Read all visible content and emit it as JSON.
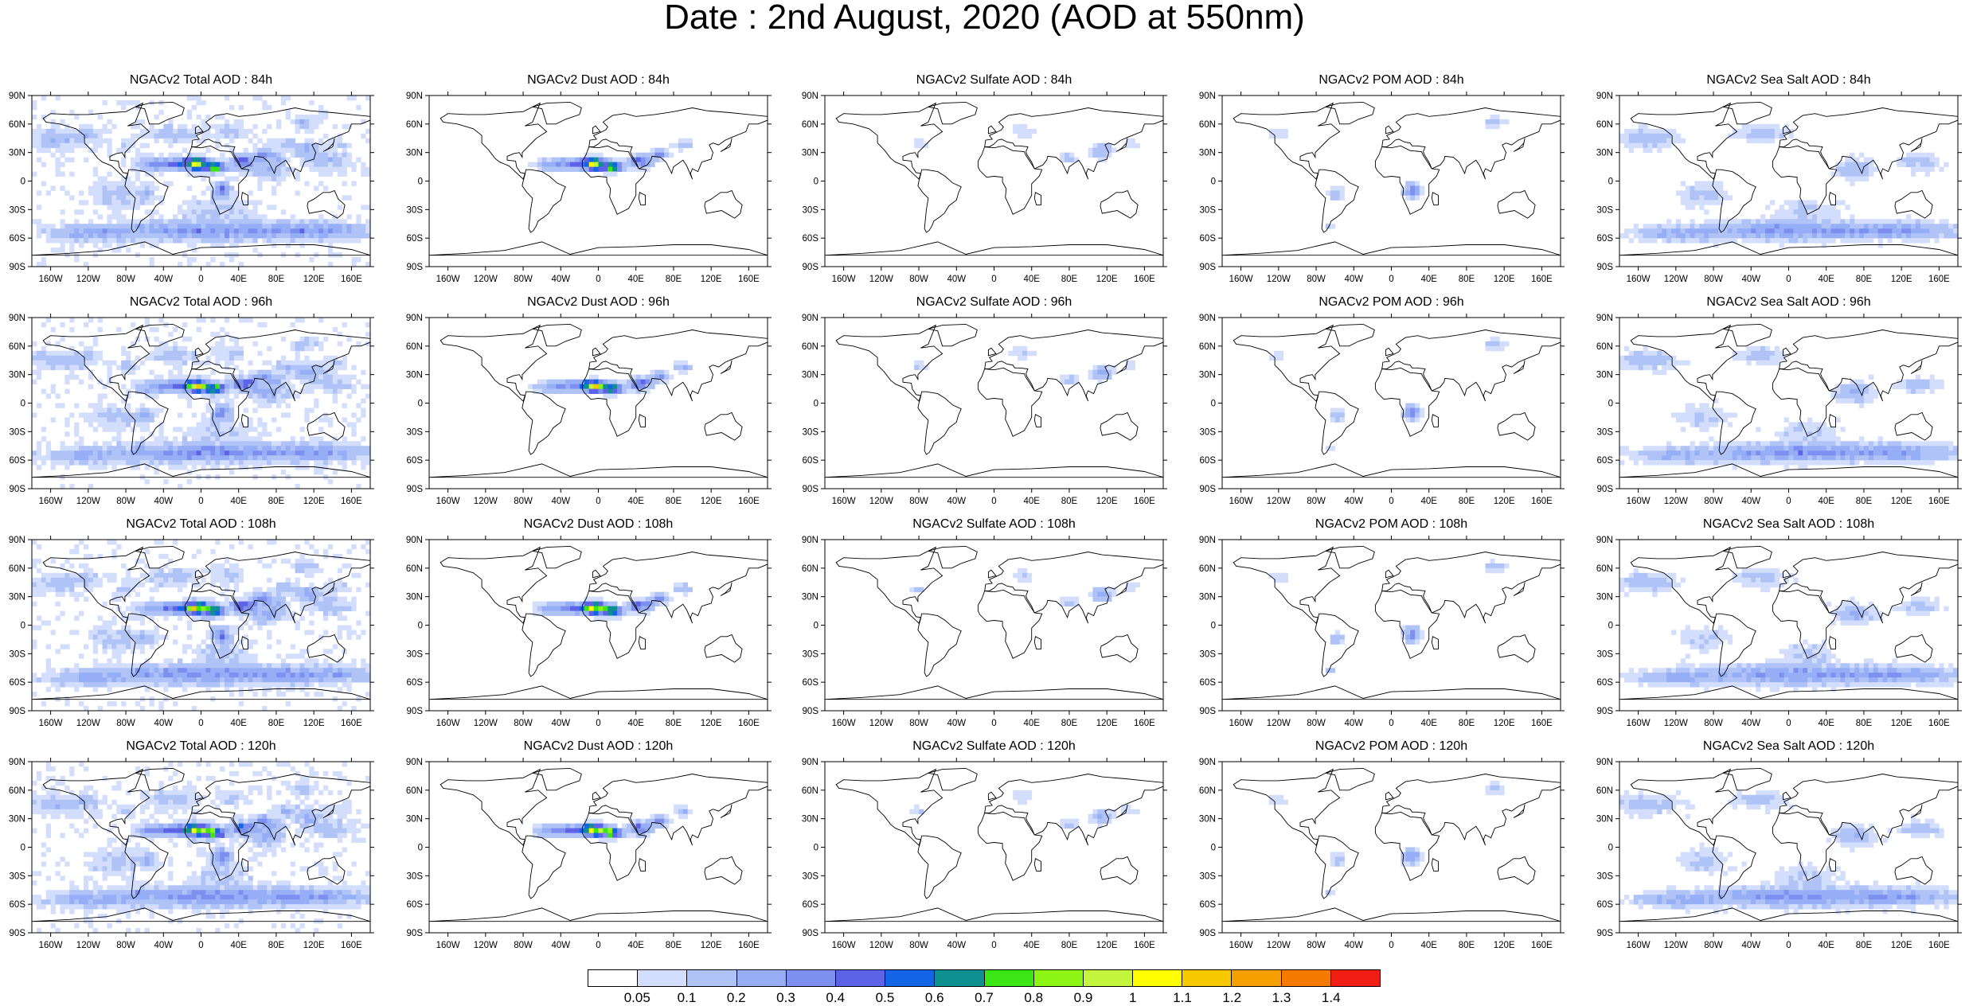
{
  "title": "Date : 2nd August, 2020 (AOD at 550nm)",
  "lat_ticks": [
    "90N",
    "60N",
    "30N",
    "0",
    "30S",
    "60S",
    "90S"
  ],
  "lon_ticks": [
    "160W",
    "120W",
    "80W",
    "40W",
    "0",
    "40E",
    "80E",
    "120E",
    "160E"
  ],
  "rows": [
    {
      "lead": "84h",
      "panels": [
        {
          "title": "NGACv2 Total AOD : 84h",
          "species": "total"
        },
        {
          "title": "NGACv2 Dust AOD : 84h",
          "species": "dust"
        },
        {
          "title": "NGACv2 Sulfate AOD : 84h",
          "species": "sulfate"
        },
        {
          "title": "NGACv2 POM AOD : 84h",
          "species": "pom"
        },
        {
          "title": "NGACv2 Sea Salt AOD : 84h",
          "species": "seasalt"
        }
      ]
    },
    {
      "lead": "96h",
      "panels": [
        {
          "title": "NGACv2 Total AOD : 96h",
          "species": "total"
        },
        {
          "title": "NGACv2 Dust AOD : 96h",
          "species": "dust"
        },
        {
          "title": "NGACv2 Sulfate AOD : 96h",
          "species": "sulfate"
        },
        {
          "title": "NGACv2 POM AOD : 96h",
          "species": "pom"
        },
        {
          "title": "NGACv2 Sea Salt AOD : 96h",
          "species": "seasalt"
        }
      ]
    },
    {
      "lead": "108h",
      "panels": [
        {
          "title": "NGACv2 Total AOD : 108h",
          "species": "total"
        },
        {
          "title": "NGACv2 Dust AOD : 108h",
          "species": "dust"
        },
        {
          "title": "NGACv2 Sulfate AOD : 108h",
          "species": "sulfate"
        },
        {
          "title": "NGACv2 POM AOD : 108h",
          "species": "pom"
        },
        {
          "title": "NGACv2 Sea Salt AOD : 108h",
          "species": "seasalt"
        }
      ]
    },
    {
      "lead": "120h",
      "panels": [
        {
          "title": "NGACv2 Total AOD : 120h",
          "species": "total"
        },
        {
          "title": "NGACv2 Dust AOD : 120h",
          "species": "dust"
        },
        {
          "title": "NGACv2 Sulfate AOD : 120h",
          "species": "sulfate"
        },
        {
          "title": "NGACv2 POM AOD : 120h",
          "species": "pom"
        },
        {
          "title": "NGACv2 Sea Salt  AOD : 120h",
          "species": "seasalt"
        }
      ]
    }
  ],
  "colorbar": {
    "levels": [
      "0.05",
      "0.1",
      "0.2",
      "0.3",
      "0.4",
      "0.5",
      "0.6",
      "0.7",
      "0.8",
      "0.9",
      "1",
      "1.1",
      "1.2",
      "1.3",
      "1.4"
    ],
    "colors": [
      "#ffffff",
      "#d2defc",
      "#b0c3f7",
      "#96aef5",
      "#7e90ef",
      "#5c63e6",
      "#1464e6",
      "#0e9090",
      "#3ce614",
      "#8cf514",
      "#c2f53c",
      "#ffff00",
      "#fac800",
      "#f5a000",
      "#f57a00",
      "#f01e14"
    ]
  }
}
